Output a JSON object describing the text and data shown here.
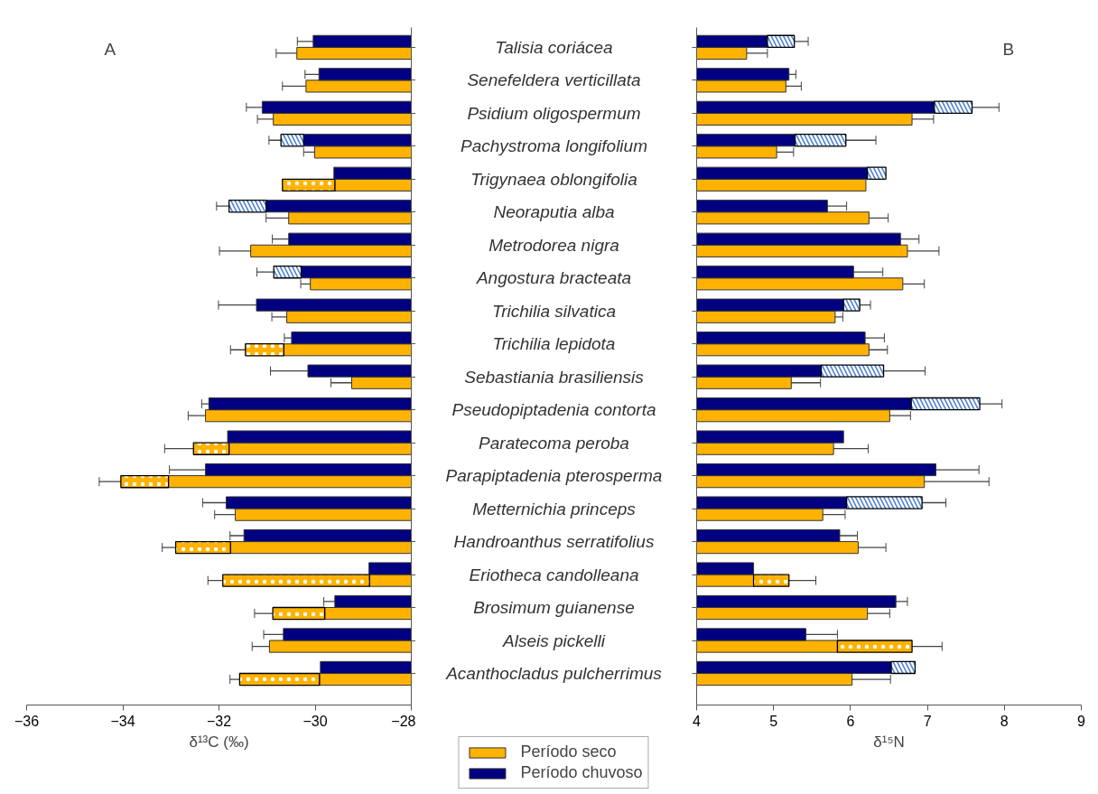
{
  "chart_data": [
    {
      "type": "bar",
      "orientation": "horizontal",
      "legend": "bottom",
      "tick_labels": "x",
      "xlabel": "δ¹³C (‰)",
      "annotations": [
        "A"
      ],
      "categories": [
        "Talisia coriácea",
        "Senefeldera verticillata",
        "Psidium oligospermum",
        "Pachystroma longifolium",
        "Trigynaea oblongifolia",
        "Neoraputia alba",
        "Metrodorea nigra",
        "Angostura bracteata",
        "Trichilia silvatica",
        "Trichilia lepidota",
        "Sebastiania brasiliensis",
        "Pseudopiptadenia contorta",
        "Paratecoma peroba",
        "Parapiptadenia pterosperma",
        "Metternichia princeps",
        "Handroanthus serratifolius",
        "Eriotheca candolleana",
        "Brosimum guianense",
        "Alseis pickelli",
        "Acanthocladus pulcherrimus"
      ],
      "xlim": [
        -36,
        -28
      ],
      "xticks": [
        -36,
        -34,
        -32,
        -30,
        -28
      ],
      "series": [
        {
          "name": "Período seco",
          "color": "#ffb300",
          "base": [
            -28,
            -28,
            -28,
            -28,
            -28,
            -28,
            -28,
            -28,
            -28,
            -28,
            -28,
            -28,
            -28,
            -28,
            -28,
            -28,
            -28,
            -28,
            -28,
            -28
          ],
          "values": [
            -2.38,
            -2.19,
            -2.87,
            -2.01,
            -1.59,
            -2.55,
            -3.34,
            -2.1,
            -2.59,
            -2.65,
            -1.24,
            -4.28,
            -3.79,
            -5.05,
            -3.66,
            -3.76,
            -0.87,
            -1.8,
            -2.95,
            -1.91
          ],
          "errors": [
            0.43,
            0.49,
            0.33,
            0.23,
            null,
            0.47,
            0.65,
            0.2,
            0.31,
            null,
            0.43,
            0.36,
            null,
            null,
            0.43,
            null,
            null,
            null,
            0.36,
            null
          ]
        },
        {
          "color": "#ffb300",
          "base": [
            null,
            null,
            null,
            null,
            -29.59,
            null,
            null,
            null,
            null,
            -30.65,
            null,
            null,
            -31.79,
            -33.05,
            null,
            -31.76,
            -28.87,
            -29.8,
            null,
            -29.91
          ],
          "values": [
            null,
            null,
            null,
            null,
            -1.09,
            null,
            null,
            null,
            null,
            -0.8,
            null,
            null,
            -0.74,
            -0.99,
            null,
            -1.14,
            -3.05,
            -1.08,
            null,
            -1.66
          ],
          "errors": [
            null,
            null,
            null,
            null,
            null,
            null,
            null,
            null,
            null,
            0.31,
            null,
            null,
            0.6,
            0.45,
            null,
            0.28,
            0.31,
            0.38,
            null,
            0.2
          ]
        },
        {
          "name": "Período chuvoso",
          "color": "#000080",
          "base": [
            -28,
            -28,
            -28,
            -28,
            -28,
            -28,
            -28,
            -28,
            -28,
            -28,
            -28,
            -28,
            -28,
            -28,
            -28,
            -28,
            -28,
            -28,
            -28,
            -28
          ],
          "values": [
            -2.04,
            -1.92,
            -3.1,
            -2.24,
            -1.61,
            -3.02,
            -2.55,
            -2.29,
            -3.22,
            -2.49,
            -2.15,
            -4.21,
            -3.82,
            -4.28,
            -3.85,
            -3.48,
            -0.88,
            -1.59,
            -2.66,
            -1.89
          ],
          "errors": [
            0.33,
            0.29,
            0.33,
            null,
            null,
            null,
            0.34,
            null,
            0.79,
            0.15,
            0.78,
            0.15,
            null,
            0.75,
            0.49,
            0.29,
            null,
            0.23,
            0.41,
            null
          ]
        },
        {
          "color": "#4a7fd0",
          "base": [
            null,
            null,
            null,
            -30.24,
            null,
            -31.02,
            null,
            -30.29,
            null,
            null,
            null,
            null,
            null,
            null,
            null,
            null,
            null,
            null,
            null,
            null
          ],
          "values": [
            null,
            null,
            null,
            -0.47,
            null,
            -0.77,
            null,
            -0.57,
            null,
            null,
            null,
            null,
            null,
            null,
            null,
            null,
            null,
            null,
            null,
            null
          ],
          "errors": [
            null,
            null,
            null,
            0.25,
            null,
            0.26,
            null,
            0.35,
            null,
            null,
            null,
            null,
            null,
            null,
            null,
            null,
            null,
            null,
            null,
            null
          ]
        }
      ]
    },
    {
      "type": "bar",
      "orientation": "horizontal",
      "tick_labels": "x",
      "xlabel": "δ¹⁵N",
      "annotations": [
        "B"
      ],
      "categories": [
        "Talisia coriácea",
        "Senefeldera verticillata",
        "Psidium oligospermum",
        "Pachystroma longifolium",
        "Trigynaea oblongifolia",
        "Neoraputia alba",
        "Metrodorea nigra",
        "Angostura bracteata",
        "Trichilia silvatica",
        "Trichilia lepidota",
        "Sebastiania brasiliensis",
        "Pseudopiptadenia contorta",
        "Paratecoma peroba",
        "Parapiptadenia pterosperma",
        "Metternichia princeps",
        "Handroanthus serratifolius",
        "Eriotheca candolleana",
        "Brosimum guianense",
        "Alseis pickelli",
        "Acanthocladus pulcherrimus"
      ],
      "xlim": [
        4,
        9
      ],
      "xticks": [
        4,
        5,
        6,
        7,
        8,
        9
      ],
      "series": [
        {
          "color": "#ffb300",
          "base": [
            4,
            4,
            4,
            4,
            4,
            4,
            4,
            4,
            4,
            4,
            4,
            4,
            4,
            4,
            4,
            4,
            4,
            4,
            4,
            4
          ],
          "values": [
            0.65,
            1.16,
            2.8,
            1.04,
            2.2,
            2.24,
            2.74,
            2.68,
            1.8,
            2.24,
            1.23,
            2.51,
            1.78,
            2.96,
            1.64,
            2.1,
            0.74,
            2.22,
            1.83,
            2.02
          ],
          "errors": [
            0.27,
            0.2,
            0.28,
            0.22,
            null,
            0.25,
            0.41,
            0.28,
            0.1,
            0.24,
            0.38,
            0.27,
            0.45,
            0.84,
            0.29,
            0.36,
            null,
            0.29,
            null,
            0.5
          ]
        },
        {
          "color": "#ffb300",
          "base": [
            null,
            null,
            null,
            null,
            null,
            null,
            null,
            null,
            null,
            null,
            null,
            null,
            null,
            null,
            null,
            null,
            4.74,
            null,
            5.83,
            null
          ],
          "values": [
            null,
            null,
            null,
            null,
            null,
            null,
            null,
            null,
            null,
            null,
            null,
            null,
            null,
            null,
            null,
            null,
            0.46,
            null,
            0.97,
            null
          ],
          "errors": [
            null,
            null,
            null,
            null,
            null,
            null,
            null,
            null,
            null,
            null,
            null,
            null,
            null,
            null,
            null,
            null,
            0.35,
            null,
            0.39,
            null
          ]
        },
        {
          "color": "#000080",
          "base": [
            4,
            4,
            4,
            4,
            4,
            4,
            4,
            4,
            4,
            4,
            4,
            4,
            4,
            4,
            4,
            4,
            4,
            4,
            4,
            4
          ],
          "values": [
            0.92,
            1.2,
            3.09,
            1.28,
            2.22,
            1.7,
            2.65,
            2.04,
            1.91,
            2.19,
            1.62,
            2.79,
            1.91,
            3.11,
            1.95,
            1.86,
            0.74,
            2.59,
            1.42,
            2.53
          ],
          "errors": [
            null,
            0.09,
            null,
            null,
            null,
            0.25,
            0.24,
            0.38,
            null,
            0.25,
            null,
            null,
            null,
            0.56,
            null,
            0.23,
            null,
            0.15,
            0.41,
            null
          ]
        },
        {
          "color": "#4a7fd0",
          "base": [
            4.92,
            null,
            7.09,
            5.28,
            6.22,
            null,
            null,
            null,
            5.91,
            null,
            5.62,
            6.79,
            null,
            null,
            5.95,
            null,
            null,
            null,
            null,
            6.53
          ],
          "values": [
            0.35,
            null,
            0.49,
            0.66,
            0.24,
            null,
            null,
            null,
            0.21,
            null,
            0.81,
            0.89,
            null,
            null,
            0.98,
            null,
            null,
            null,
            null,
            0.31
          ],
          "errors": [
            0.18,
            null,
            0.35,
            0.39,
            null,
            null,
            null,
            null,
            0.14,
            null,
            0.54,
            0.29,
            null,
            null,
            0.31,
            null,
            null,
            null,
            null,
            null
          ]
        }
      ]
    }
  ]
}
